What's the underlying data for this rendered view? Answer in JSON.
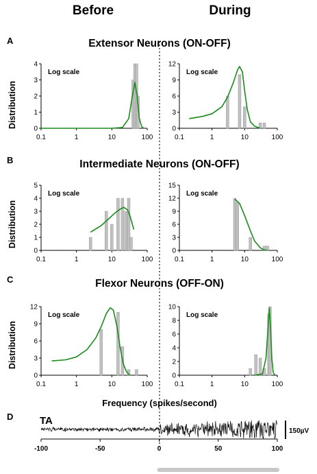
{
  "headers": {
    "before": "Before",
    "during": "During"
  },
  "panels": [
    {
      "letter": "A",
      "title": "Extensor Neurons (ON-OFF)"
    },
    {
      "letter": "B",
      "title": "Intermediate Neurons (ON-OFF)"
    },
    {
      "letter": "C",
      "title": "Flexor Neurons (OFF-ON)"
    }
  ],
  "ylabel": "Distribution",
  "xlabel": "Frequency (spikes/second)",
  "log_note": "Log scale",
  "colors": {
    "bars": "#c0c0c0",
    "bar_edge": "#8c8c8c",
    "fit": "#1a8a1a",
    "trace": "#000000",
    "bar_indicator": "#c8c8c8",
    "divider": "#444444"
  },
  "chart_data": [
    {
      "type": "bar",
      "panel": "A",
      "condition": "Before",
      "xscale": "log",
      "xlim": [
        0.1,
        100
      ],
      "xticks": [
        "0.1",
        "1",
        "10",
        "100"
      ],
      "ylim": [
        0,
        4
      ],
      "yticks": [
        0,
        1,
        2,
        3,
        4
      ],
      "bars": [
        {
          "x": 40,
          "y": 3
        },
        {
          "x": 45,
          "y": 4
        },
        {
          "x": 50,
          "y": 4
        },
        {
          "x": 55,
          "y": 2
        }
      ],
      "fit": [
        [
          0.1,
          0
        ],
        [
          1,
          0
        ],
        [
          10,
          0
        ],
        [
          20,
          0.05
        ],
        [
          30,
          0.6
        ],
        [
          38,
          2.0
        ],
        [
          45,
          2.85
        ],
        [
          52,
          2.0
        ],
        [
          60,
          0.6
        ],
        [
          70,
          0.1
        ],
        [
          80,
          0
        ]
      ]
    },
    {
      "type": "bar",
      "panel": "A",
      "condition": "During",
      "xscale": "log",
      "xlim": [
        0.1,
        100
      ],
      "xticks": [
        "0.1",
        "1",
        "10",
        "100"
      ],
      "ylim": [
        0,
        12
      ],
      "yticks": [
        0,
        3,
        6,
        9,
        12
      ],
      "bars": [
        {
          "x": 3,
          "y": 6
        },
        {
          "x": 7,
          "y": 10
        },
        {
          "x": 10,
          "y": 4
        },
        {
          "x": 30,
          "y": 1
        },
        {
          "x": 40,
          "y": 1
        }
      ],
      "fit": [
        [
          0.2,
          1.8
        ],
        [
          0.5,
          2.2
        ],
        [
          1,
          2.7
        ],
        [
          2,
          4
        ],
        [
          3,
          5.8
        ],
        [
          4.5,
          8.5
        ],
        [
          6,
          10.8
        ],
        [
          7,
          11.5
        ],
        [
          8.5,
          10.5
        ],
        [
          10,
          7
        ],
        [
          12,
          3.5
        ],
        [
          15,
          1.2
        ],
        [
          20,
          0.4
        ],
        [
          30,
          0
        ]
      ]
    },
    {
      "type": "bar",
      "panel": "B",
      "condition": "Before",
      "xscale": "log",
      "xlim": [
        0.1,
        100
      ],
      "xticks": [
        "0.1",
        "1",
        "10",
        "100"
      ],
      "ylim": [
        0,
        5
      ],
      "yticks": [
        0,
        1,
        2,
        3,
        4,
        5
      ],
      "bars": [
        {
          "x": 2.5,
          "y": 1
        },
        {
          "x": 7,
          "y": 3
        },
        {
          "x": 10,
          "y": 2
        },
        {
          "x": 15,
          "y": 4
        },
        {
          "x": 20,
          "y": 4
        },
        {
          "x": 25,
          "y": 3
        },
        {
          "x": 30,
          "y": 4
        },
        {
          "x": 35,
          "y": 1
        }
      ],
      "fit": [
        [
          2.5,
          1.4
        ],
        [
          5,
          1.9
        ],
        [
          8,
          2.4
        ],
        [
          12,
          2.85
        ],
        [
          18,
          3.2
        ],
        [
          22,
          3.3
        ],
        [
          28,
          3.1
        ],
        [
          33,
          2.6
        ],
        [
          38,
          2.0
        ],
        [
          42,
          1.6
        ]
      ]
    },
    {
      "type": "bar",
      "panel": "B",
      "condition": "During",
      "xscale": "log",
      "xlim": [
        0.1,
        100
      ],
      "xticks": [
        "0.1",
        "1",
        "10",
        "100"
      ],
      "ylim": [
        0,
        15
      ],
      "yticks": [
        0,
        3,
        6,
        9,
        12,
        15
      ],
      "bars": [
        {
          "x": 5,
          "y": 12
        },
        {
          "x": 6,
          "y": 11
        },
        {
          "x": 15,
          "y": 3
        },
        {
          "x": 40,
          "y": 1
        },
        {
          "x": 50,
          "y": 1
        }
      ],
      "fit": [
        [
          5,
          11.8
        ],
        [
          7,
          10.8
        ],
        [
          10,
          8
        ],
        [
          15,
          4.5
        ],
        [
          20,
          2.2
        ],
        [
          30,
          0.6
        ],
        [
          40,
          0.1
        ],
        [
          50,
          0
        ]
      ]
    },
    {
      "type": "bar",
      "panel": "C",
      "condition": "Before",
      "xscale": "log",
      "xlim": [
        0.1,
        100
      ],
      "xticks": [
        "0.1",
        "1",
        "10",
        "100"
      ],
      "ylim": [
        0,
        12
      ],
      "yticks": [
        0,
        3,
        6,
        9,
        12
      ],
      "bars": [
        {
          "x": 5,
          "y": 8
        },
        {
          "x": 15,
          "y": 11
        },
        {
          "x": 20,
          "y": 5
        },
        {
          "x": 30,
          "y": 1
        },
        {
          "x": 50,
          "y": 1
        }
      ],
      "fit": [
        [
          0.2,
          2.5
        ],
        [
          0.5,
          2.7
        ],
        [
          1,
          3.2
        ],
        [
          2,
          4.5
        ],
        [
          3.5,
          6.5
        ],
        [
          5,
          8.5
        ],
        [
          7,
          10.8
        ],
        [
          9,
          11.8
        ],
        [
          11,
          11.4
        ],
        [
          14,
          8.5
        ],
        [
          17,
          5
        ],
        [
          21,
          2
        ],
        [
          26,
          0.6
        ],
        [
          32,
          0
        ]
      ]
    },
    {
      "type": "bar",
      "panel": "C",
      "condition": "During",
      "xscale": "log",
      "xlim": [
        0.1,
        100
      ],
      "xticks": [
        "0.1",
        "1",
        "10",
        "100"
      ],
      "ylim": [
        0,
        10
      ],
      "yticks": [
        0,
        2,
        4,
        6,
        8,
        10
      ],
      "bars": [
        {
          "x": 15,
          "y": 1
        },
        {
          "x": 22,
          "y": 3
        },
        {
          "x": 30,
          "y": 2.5
        },
        {
          "x": 40,
          "y": 1
        },
        {
          "x": 55,
          "y": 9
        },
        {
          "x": 60,
          "y": 10
        }
      ],
      "fit": [
        [
          20,
          0
        ],
        [
          35,
          0.2
        ],
        [
          45,
          2.5
        ],
        [
          52,
          7
        ],
        [
          57,
          9.8
        ],
        [
          62,
          7
        ],
        [
          68,
          2.5
        ],
        [
          75,
          0.4
        ],
        [
          85,
          0
        ]
      ]
    }
  ],
  "emg": {
    "label": "TA",
    "xlim": [
      -100,
      100
    ],
    "xticks": [
      "-100",
      "-50",
      "0",
      "50",
      "100"
    ],
    "scale_label": "150µV"
  }
}
